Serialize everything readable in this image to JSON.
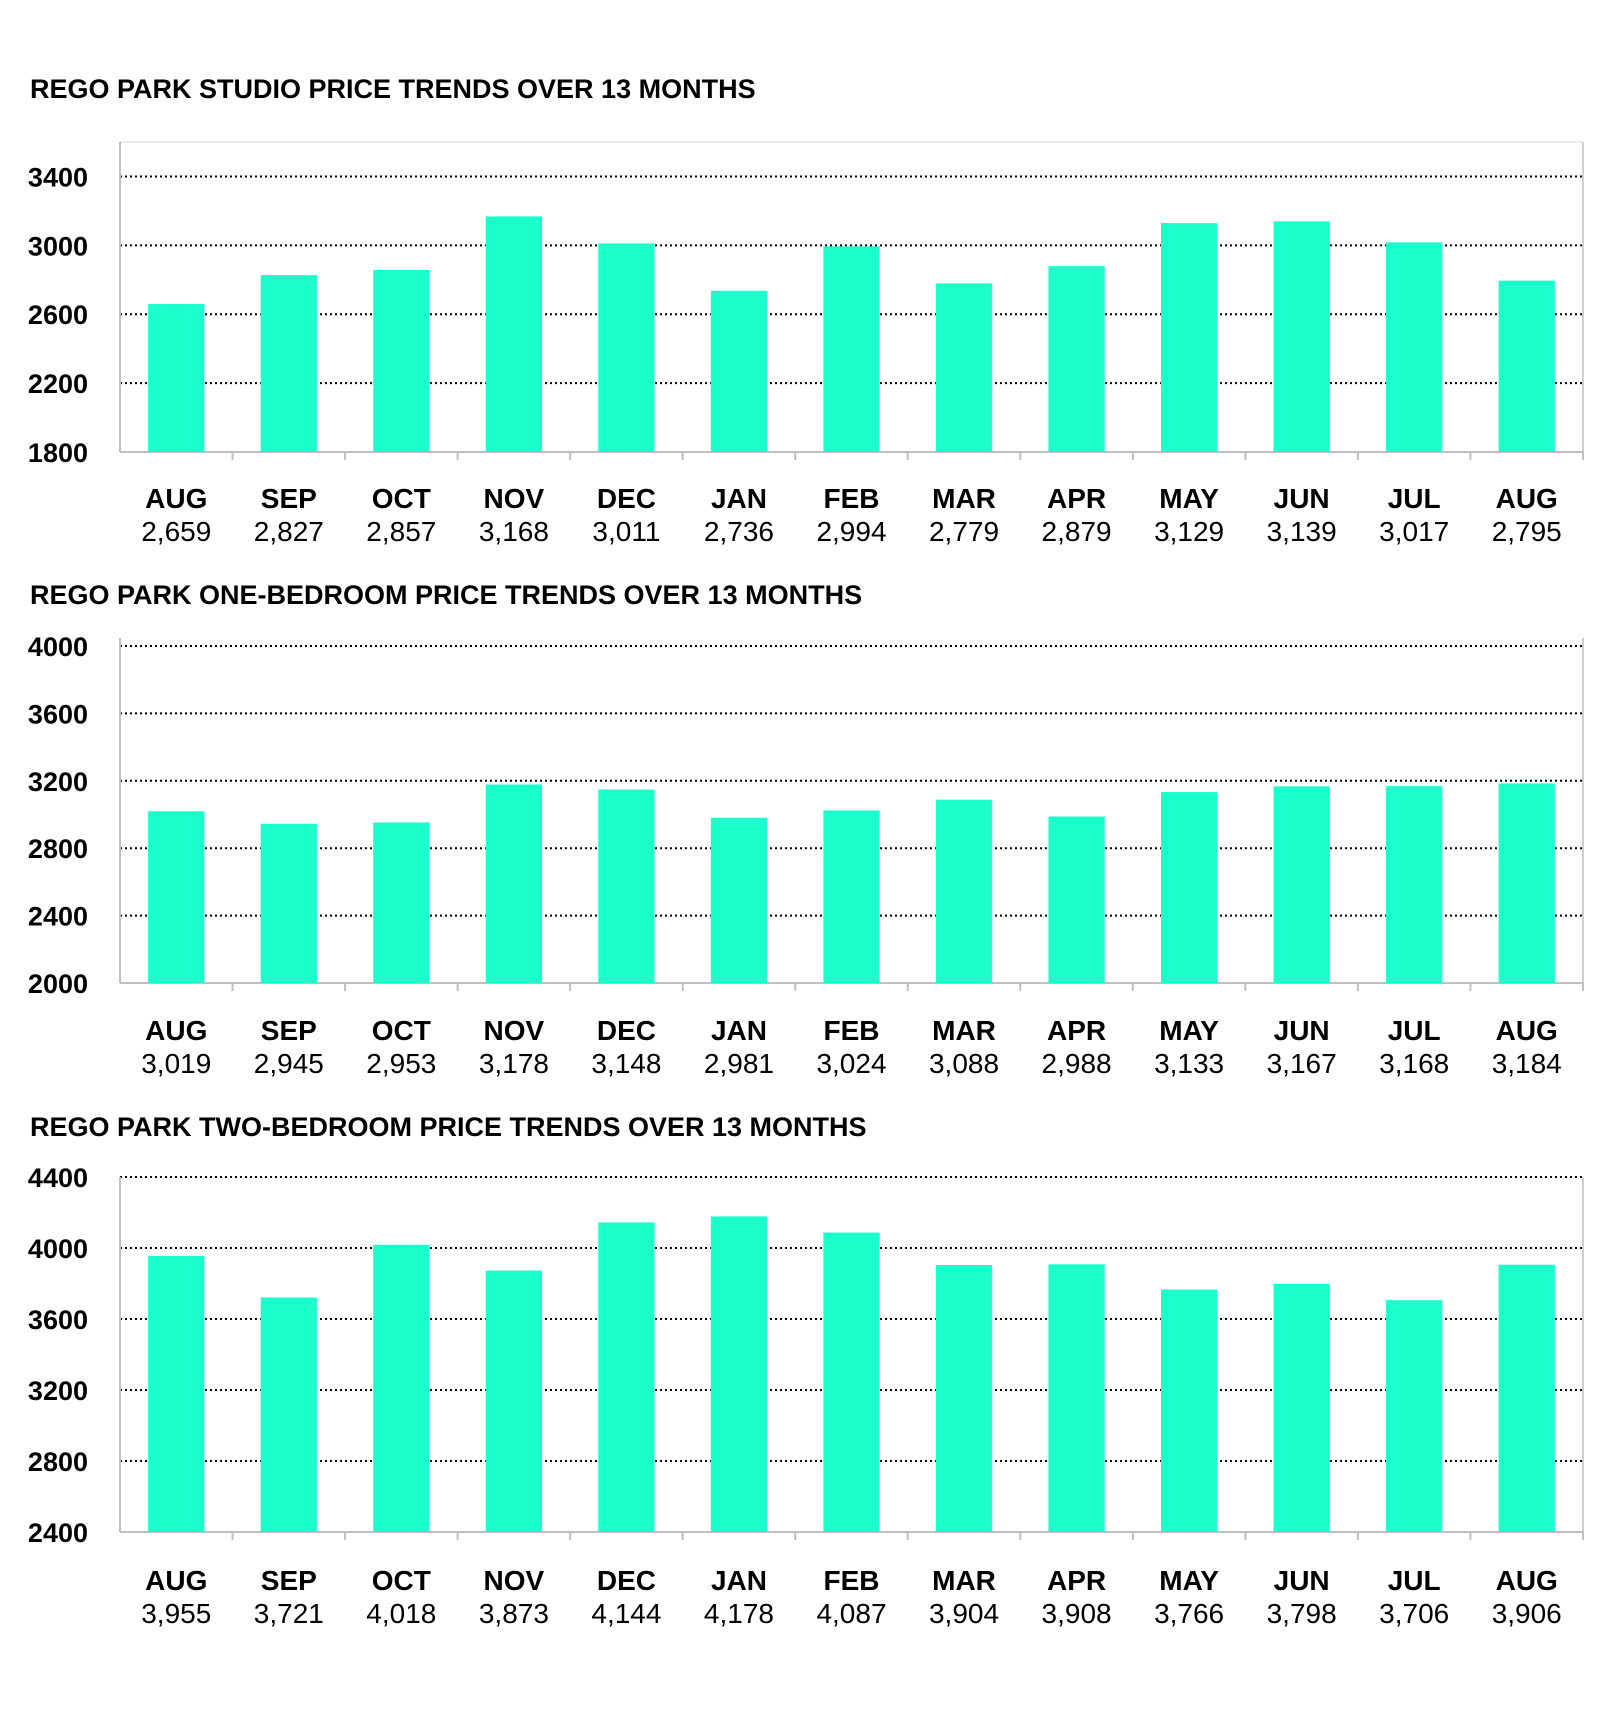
{
  "style": {
    "bar_color": "#1affcc",
    "grid_color": "#000000",
    "axis_color": "#bfbfbf"
  },
  "chart_data": [
    {
      "type": "bar",
      "title": "REGO PARK STUDIO PRICE TRENDS OVER 13 MONTHS",
      "categories": [
        "AUG",
        "SEP",
        "OCT",
        "NOV",
        "DEC",
        "JAN",
        "FEB",
        "MAR",
        "APR",
        "MAY",
        "JUN",
        "JUL",
        "AUG"
      ],
      "values": [
        2659,
        2827,
        2857,
        3168,
        3011,
        2736,
        2994,
        2779,
        2879,
        3129,
        3139,
        3017,
        2795
      ],
      "value_labels": [
        "2,659",
        "2,827",
        "2,857",
        "3,168",
        "3,011",
        "2,736",
        "2,994",
        "2,779",
        "2,879",
        "3,129",
        "3,139",
        "3,017",
        "2,795"
      ],
      "yticks": [
        1800,
        2200,
        2600,
        3000,
        3400
      ],
      "ylim": [
        1800,
        3600
      ],
      "grid": true
    },
    {
      "type": "bar",
      "title": "REGO PARK ONE-BEDROOM PRICE TRENDS OVER 13 MONTHS",
      "categories": [
        "AUG",
        "SEP",
        "OCT",
        "NOV",
        "DEC",
        "JAN",
        "FEB",
        "MAR",
        "APR",
        "MAY",
        "JUN",
        "JUL",
        "AUG"
      ],
      "values": [
        3019,
        2945,
        2953,
        3178,
        3148,
        2981,
        3024,
        3088,
        2988,
        3133,
        3167,
        3168,
        3184
      ],
      "value_labels": [
        "3,019",
        "2,945",
        "2,953",
        "3,178",
        "3,148",
        "2,981",
        "3,024",
        "3,088",
        "2,988",
        "3,133",
        "3,167",
        "3,168",
        "3,184"
      ],
      "yticks": [
        2000,
        2400,
        2800,
        3200,
        3600,
        4000
      ],
      "ylim": [
        2000,
        4000
      ],
      "grid": true
    },
    {
      "type": "bar",
      "title": "REGO PARK TWO-BEDROOM PRICE TRENDS OVER 13 MONTHS",
      "categories": [
        "AUG",
        "SEP",
        "OCT",
        "NOV",
        "DEC",
        "JAN",
        "FEB",
        "MAR",
        "APR",
        "MAY",
        "JUN",
        "JUL",
        "AUG"
      ],
      "values": [
        3955,
        3721,
        4018,
        3873,
        4144,
        4178,
        4087,
        3904,
        3908,
        3766,
        3798,
        3706,
        3906
      ],
      "value_labels": [
        "3,955",
        "3,721",
        "4,018",
        "3,873",
        "4,144",
        "4,178",
        "4,087",
        "3,904",
        "3,908",
        "3,766",
        "3,798",
        "3,706",
        "3,906"
      ],
      "yticks": [
        2400,
        2800,
        3200,
        3600,
        4000,
        4400
      ],
      "ylim": [
        2400,
        4400
      ],
      "grid": true
    }
  ]
}
